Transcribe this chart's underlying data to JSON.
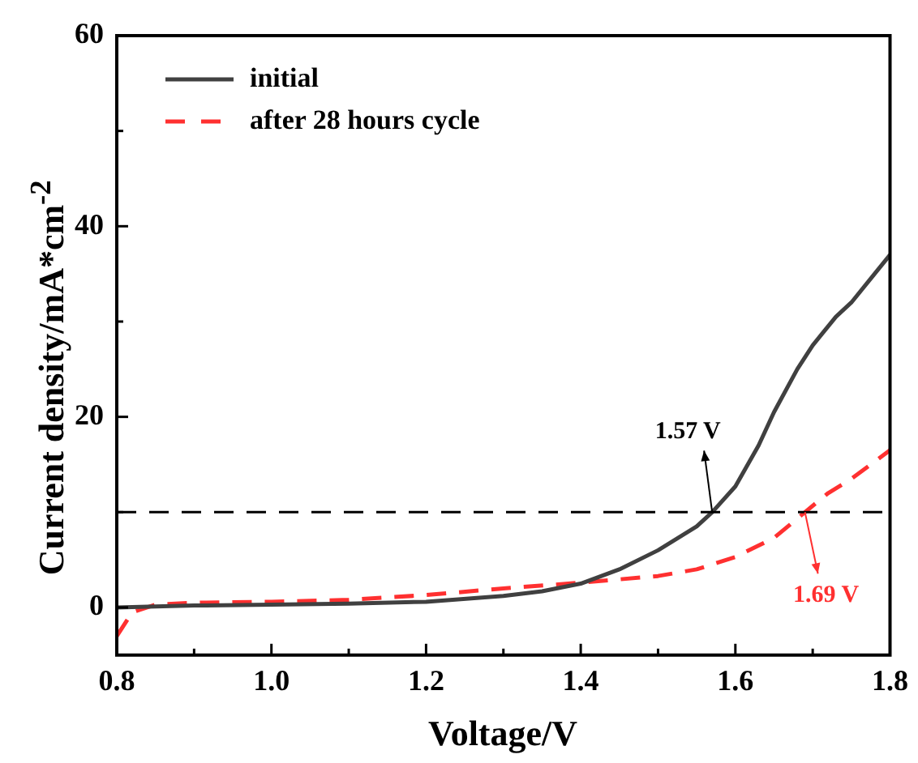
{
  "chart_data": {
    "type": "line",
    "xlabel": "Voltage/V",
    "ylabel": "Current density/mA*cm$^{-2}$",
    "xlim": [
      0.8,
      1.8
    ],
    "ylim": [
      -5,
      60
    ],
    "xticks": [
      0.8,
      {
        "value": 0.9,
        "label": null
      },
      {
        "value": 1,
        "label": "1.0"
      },
      {
        "value": 1.1,
        "label": null
      },
      1.2,
      {
        "value": 1.3,
        "label": null
      },
      1.4,
      {
        "value": 1.5,
        "label": null
      },
      1.6,
      {
        "value": 1.7,
        "label": null
      },
      1.8
    ],
    "yticks": [
      0,
      {
        "value": 10,
        "label": null
      },
      20,
      {
        "value": 30,
        "label": null
      },
      40,
      {
        "value": 50,
        "label": null
      },
      60
    ],
    "grid": false,
    "legend": "top left",
    "marker": "none",
    "series": [
      {
        "name": "initial",
        "color": "#404040",
        "line_style": "solid",
        "x": [
          0.8,
          0.9,
          1.0,
          1.1,
          1.2,
          1.3,
          1.35,
          1.4,
          1.45,
          1.5,
          1.55,
          1.57,
          1.6,
          1.63,
          1.65,
          1.68,
          1.7,
          1.73,
          1.75,
          1.78,
          1.8
        ],
        "values": [
          0,
          0.2,
          0.3,
          0.4,
          0.6,
          1.2,
          1.7,
          2.5,
          4,
          6,
          8.5,
          10,
          12.7,
          17,
          20.5,
          25,
          27.5,
          30.5,
          32,
          35,
          37
        ]
      },
      {
        "name": "after 28 hours cycle",
        "color": "#ff3030",
        "line_style": "dashed",
        "x": [
          0.8,
          0.82,
          0.85,
          0.9,
          1.0,
          1.1,
          1.2,
          1.3,
          1.4,
          1.5,
          1.55,
          1.6,
          1.65,
          1.69,
          1.72,
          1.75,
          1.8
        ],
        "values": [
          -3,
          -0.5,
          0.3,
          0.5,
          0.6,
          0.8,
          1.3,
          2.0,
          2.6,
          3.3,
          4,
          5.3,
          7.3,
          10,
          12,
          13.5,
          16.5
        ]
      }
    ],
    "ref_lines": [
      {
        "axis": "y",
        "value": 10,
        "color": "#000000",
        "line_style": "dashed"
      }
    ],
    "annotations": [
      {
        "text": "1.57 V",
        "x": 1.57,
        "y": 10
      },
      {
        "text": "1.69 V",
        "x": 1.69,
        "y": 10
      }
    ]
  }
}
